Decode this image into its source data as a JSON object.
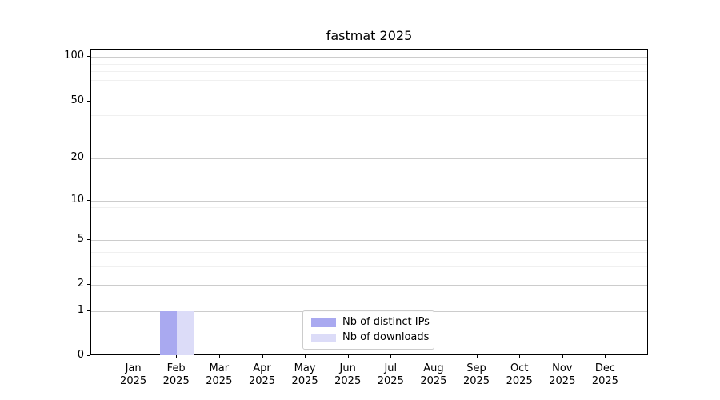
{
  "figure": {
    "title": "fastmat 2025"
  },
  "chart_data": {
    "type": "bar",
    "title": "fastmat 2025",
    "categories": [
      "Jan",
      "Feb",
      "Mar",
      "Apr",
      "May",
      "Jun",
      "Jul",
      "Aug",
      "Sep",
      "Oct",
      "Nov",
      "Dec"
    ],
    "category_year": "2025",
    "series": [
      {
        "name": "Nb of distinct IPs",
        "color": "#a9a9f0",
        "values": [
          0,
          1,
          0,
          0,
          0,
          0,
          0,
          0,
          0,
          0,
          0,
          0
        ]
      },
      {
        "name": "Nb of downloads",
        "color": "#dcdcf8",
        "values": [
          0,
          1,
          0,
          0,
          0,
          0,
          0,
          0,
          0,
          0,
          0,
          0
        ]
      }
    ],
    "yscale": "log1p",
    "ylim": [
      0,
      112
    ],
    "yticks_major": [
      0,
      1,
      2,
      5,
      10,
      20,
      50,
      100
    ],
    "yticks_minor": [
      3,
      4,
      6,
      7,
      8,
      9,
      30,
      40,
      60,
      70,
      80,
      90
    ],
    "grid": "both",
    "legend": {
      "position": "lower center",
      "labels": [
        "Nb of distinct IPs",
        "Nb of downloads"
      ]
    }
  },
  "colors": {
    "bar_distinct_ips": "#a9a9f0",
    "bar_downloads": "#dcdcf8",
    "grid_major": "#cccccc",
    "grid_minor": "#f0f0f0",
    "spine": "#000000",
    "legend_border": "#cccccc",
    "background": "#ffffff"
  }
}
